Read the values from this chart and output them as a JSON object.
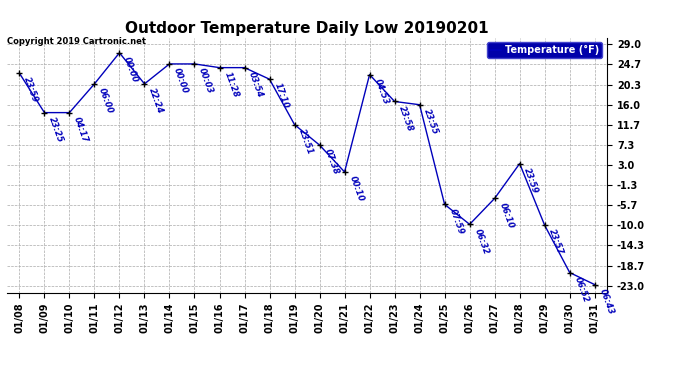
{
  "title": "Outdoor Temperature Daily Low 20190201",
  "copyright_text": "Copyright 2019 Cartronic.net",
  "legend_label": "Temperature (°F)",
  "dates": [
    "01/08",
    "01/09",
    "01/10",
    "01/11",
    "01/12",
    "01/13",
    "01/14",
    "01/15",
    "01/16",
    "01/17",
    "01/18",
    "01/19",
    "01/20",
    "01/21",
    "01/22",
    "01/23",
    "01/24",
    "01/25",
    "01/26",
    "01/27",
    "01/28",
    "01/29",
    "01/30",
    "01/31"
  ],
  "temps": [
    22.8,
    14.3,
    14.3,
    20.5,
    27.2,
    20.5,
    24.8,
    24.8,
    24.0,
    24.0,
    21.5,
    11.7,
    7.3,
    1.5,
    22.5,
    16.7,
    16.0,
    -5.5,
    -9.8,
    -4.2,
    3.3,
    -10.0,
    -20.2,
    -22.8
  ],
  "times": [
    "23:59",
    "23:25",
    "04:17",
    "06:00",
    "00:00",
    "22:24",
    "00:00",
    "00:03",
    "11:28",
    "03:54",
    "17:10",
    "23:51",
    "07:38",
    "00:10",
    "04:53",
    "23:58",
    "23:55",
    "07:59",
    "06:32",
    "06:10",
    "23:59",
    "23:57",
    "06:52",
    "06:43"
  ],
  "yticks": [
    29.0,
    24.7,
    20.3,
    16.0,
    11.7,
    7.3,
    3.0,
    -1.3,
    -5.7,
    -10.0,
    -14.3,
    -18.7,
    -23.0
  ],
  "ylim": [
    -24.5,
    30.5
  ],
  "line_color": "#0000bb",
  "marker_color": "#000000",
  "bg_color": "#ffffff",
  "grid_color": "#aaaaaa",
  "title_fontsize": 11,
  "annotation_fontsize": 6,
  "tick_fontsize": 7,
  "legend_bg": "#0000aa",
  "legend_fg": "#ffffff"
}
